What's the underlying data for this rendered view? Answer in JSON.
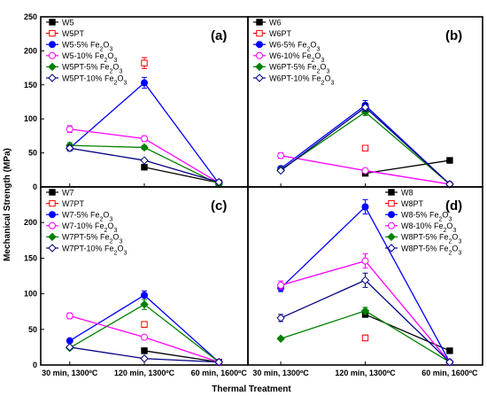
{
  "figure": {
    "ylabel": "Mechanical Strength (MPa)",
    "xlabel": "Thermal Treatment"
  },
  "chart_data": [
    {
      "type": "line",
      "panel_label": "(a)",
      "categories": [
        "30 min, 1300ºC",
        "120 min, 1300ºC",
        "60 min, 1600ºC"
      ],
      "ylim": [
        0,
        250
      ],
      "yticks": [
        0,
        50,
        100,
        150,
        200,
        250
      ],
      "legend_position": "top-left",
      "series": [
        {
          "name": "W5",
          "values": [
            null,
            29,
            6
          ],
          "err": [
            0,
            2,
            1
          ],
          "color": "#000000",
          "marker": "square-filled"
        },
        {
          "name": "W5PT",
          "values": [
            null,
            182,
            null
          ],
          "err": [
            0,
            8,
            0
          ],
          "color": "#ff0000",
          "marker": "square-open"
        },
        {
          "name": "W5-5% Fe2O3",
          "values": [
            57,
            153,
            5
          ],
          "err": [
            3,
            8,
            1
          ],
          "color": "#0000ff",
          "marker": "circle-filled"
        },
        {
          "name": "W5-10% Fe2O3",
          "values": [
            85,
            71,
            6
          ],
          "err": [
            5,
            4,
            1
          ],
          "color": "#ff00ff",
          "marker": "circle-open"
        },
        {
          "name": "W5PT-5% Fe2O3",
          "values": [
            61,
            58,
            4
          ],
          "err": [
            4,
            3,
            1
          ],
          "color": "#008000",
          "marker": "diamond-filled"
        },
        {
          "name": "W5PT-10% Fe2O3",
          "values": [
            57,
            39,
            7
          ],
          "err": [
            4,
            2,
            1
          ],
          "color": "#000080",
          "marker": "diamond-open"
        }
      ]
    },
    {
      "type": "line",
      "panel_label": "(b)",
      "categories": [
        "30 min, 1300ºC",
        "120 min, 1300ºC",
        "60 min, 1600ºC"
      ],
      "ylim": [
        0,
        250
      ],
      "yticks": [
        0,
        50,
        100,
        150,
        200,
        250
      ],
      "legend_position": "top-left",
      "series": [
        {
          "name": "W6",
          "values": [
            null,
            20,
            39
          ],
          "err": [
            0,
            2,
            4
          ],
          "color": "#000000",
          "marker": "square-filled"
        },
        {
          "name": "W6PT",
          "values": [
            null,
            57,
            null
          ],
          "err": [
            0,
            3,
            0
          ],
          "color": "#ff0000",
          "marker": "square-open"
        },
        {
          "name": "W6-5% Fe2O3",
          "values": [
            27,
            120,
            4
          ],
          "err": [
            2,
            7,
            1
          ],
          "color": "#0000ff",
          "marker": "circle-filled"
        },
        {
          "name": "W6-10% Fe2O3",
          "values": [
            46,
            24,
            4
          ],
          "err": [
            4,
            2,
            1
          ],
          "color": "#ff00ff",
          "marker": "circle-open"
        },
        {
          "name": "W6PT-5% Fe2O3",
          "values": [
            25,
            110,
            4
          ],
          "err": [
            2,
            5,
            1
          ],
          "color": "#008000",
          "marker": "diamond-filled"
        },
        {
          "name": "W6PT-10% Fe2O3",
          "values": [
            24,
            117,
            4
          ],
          "err": [
            2,
            6,
            1
          ],
          "color": "#000080",
          "marker": "diamond-open"
        }
      ]
    },
    {
      "type": "line",
      "panel_label": "(c)",
      "categories": [
        "30 min, 1300ºC",
        "120 min, 1300ºC",
        "60 min, 1600ºC"
      ],
      "ylim": [
        0,
        250
      ],
      "yticks": [
        0,
        50,
        100,
        150,
        200,
        250
      ],
      "legend_position": "top-left",
      "series": [
        {
          "name": "W7",
          "values": [
            null,
            20,
            4
          ],
          "err": [
            0,
            4,
            1
          ],
          "color": "#000000",
          "marker": "square-filled"
        },
        {
          "name": "W7PT",
          "values": [
            null,
            57,
            null
          ],
          "err": [
            0,
            4,
            0
          ],
          "color": "#ff0000",
          "marker": "square-open"
        },
        {
          "name": "W7-5% Fe2O3",
          "values": [
            34,
            98,
            4
          ],
          "err": [
            2,
            6,
            1
          ],
          "color": "#0000ff",
          "marker": "circle-filled"
        },
        {
          "name": "W7-10% Fe2O3",
          "values": [
            69,
            39,
            4
          ],
          "err": [
            4,
            3,
            1
          ],
          "color": "#ff00ff",
          "marker": "circle-open"
        },
        {
          "name": "W7PT-5% Fe2O3",
          "values": [
            24,
            85,
            4
          ],
          "err": [
            2,
            7,
            1
          ],
          "color": "#008000",
          "marker": "diamond-filled"
        },
        {
          "name": "W7PT-10% Fe2O3",
          "values": [
            25,
            9,
            4
          ],
          "err": [
            2,
            2,
            1
          ],
          "color": "#000080",
          "marker": "diamond-open"
        }
      ]
    },
    {
      "type": "line",
      "panel_label": "(d)",
      "categories": [
        "30 min, 1300ºC",
        "120 min, 1300ºC",
        "60 min, 1600ºC"
      ],
      "ylim": [
        0,
        250
      ],
      "yticks": [
        0,
        50,
        100,
        150,
        200,
        250
      ],
      "legend_position": "top-right",
      "series": [
        {
          "name": "W8",
          "values": [
            null,
            71,
            20
          ],
          "err": [
            0,
            4,
            2
          ],
          "color": "#000000",
          "marker": "square-filled"
        },
        {
          "name": "W8PT",
          "values": [
            null,
            38,
            null
          ],
          "err": [
            0,
            4,
            0
          ],
          "color": "#ff0000",
          "marker": "square-open"
        },
        {
          "name": "W8-5% Fe2O3",
          "values": [
            108,
            222,
            4
          ],
          "err": [
            5,
            10,
            1
          ],
          "color": "#0000ff",
          "marker": "circle-filled"
        },
        {
          "name": "W8-10% Fe2O3",
          "values": [
            112,
            146,
            4
          ],
          "err": [
            6,
            10,
            1
          ],
          "color": "#ff00ff",
          "marker": "circle-open"
        },
        {
          "name": "W8PT-5% Fe2O3",
          "values": [
            37,
            76,
            4
          ],
          "err": [
            2,
            5,
            1
          ],
          "color": "#008000",
          "marker": "diamond-filled"
        },
        {
          "name": "W8PT-5% Fe2O3",
          "values": [
            66,
            119,
            4
          ],
          "err": [
            5,
            10,
            1
          ],
          "color": "#000080",
          "marker": "diamond-open"
        }
      ]
    }
  ]
}
